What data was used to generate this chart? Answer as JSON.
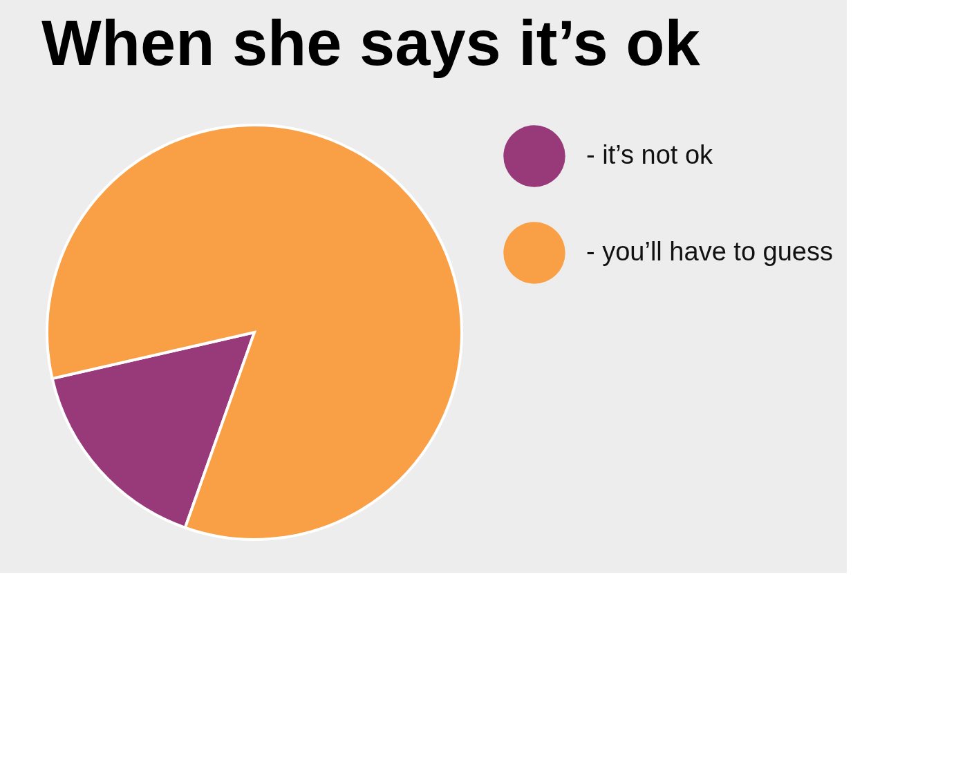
{
  "chart_data": {
    "type": "pie",
    "title": "When she says it’s ok",
    "categories": [
      "- it’s not ok",
      "- you’ll have to guess"
    ],
    "values": [
      16,
      84
    ],
    "colors": [
      "#983a7a",
      "#f99f45"
    ],
    "legend": "right"
  }
}
